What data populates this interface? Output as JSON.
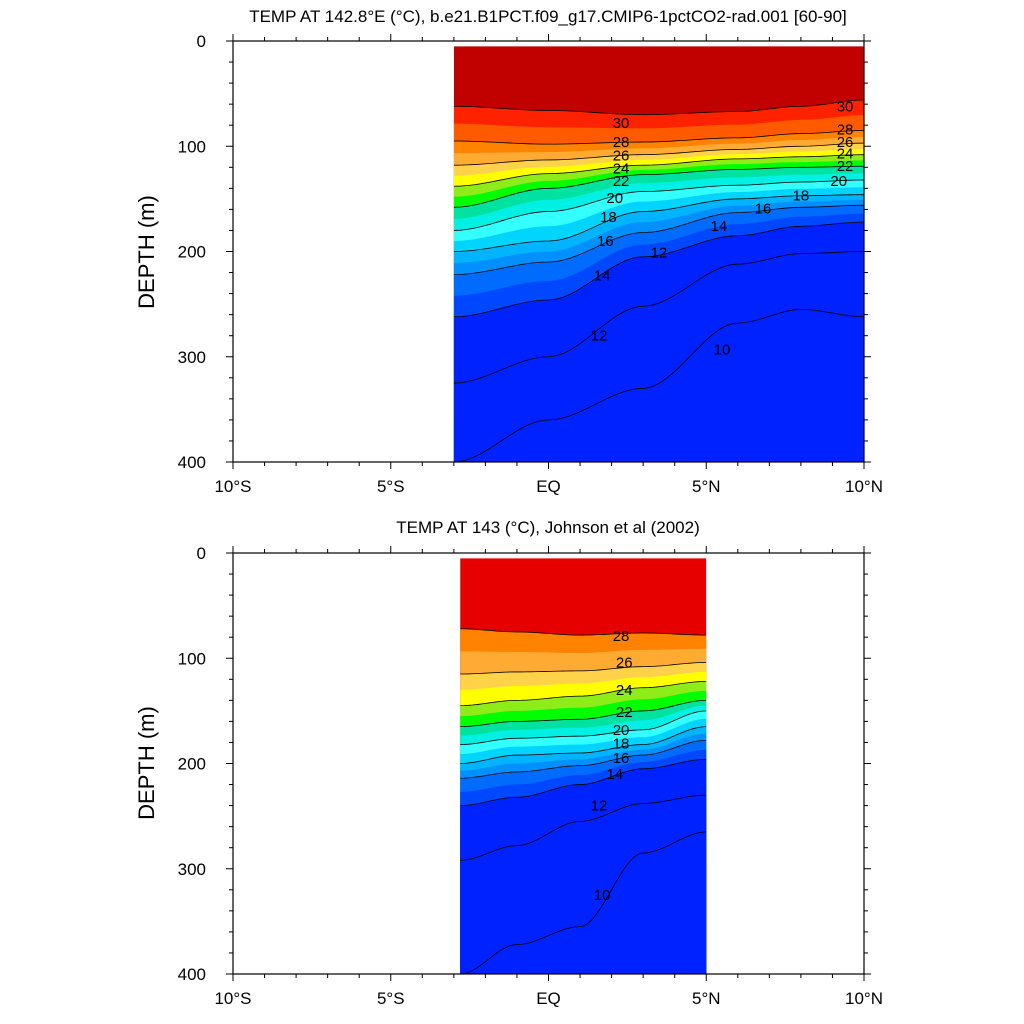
{
  "chart_data": [
    {
      "type": "heatmap",
      "title": "TEMP AT 142.8°E (°C), b.e21.B1PCT.f09_g17.CMIP6-1pctCO2-rad.001 [60-90]",
      "ylabel": "DEPTH (m)",
      "xlabel": "",
      "x_ticks": [
        -10,
        -5,
        0,
        5,
        10
      ],
      "x_tick_labels": [
        "10°S",
        "5°S",
        "EQ",
        "5°N",
        "10°N"
      ],
      "y_ticks": [
        0,
        100,
        200,
        300,
        400
      ],
      "y_tick_labels": [
        "0",
        "100",
        "200",
        "300",
        "400"
      ],
      "xlim": [
        -10,
        10
      ],
      "ylim": [
        400,
        0
      ],
      "y_reversed": true,
      "data_x_range": [
        -3,
        10
      ],
      "data_depth_range": [
        5,
        400
      ],
      "contour_levels": [
        30,
        28,
        26,
        24,
        22,
        20,
        18,
        16,
        14,
        12,
        10
      ],
      "contours": [
        {
          "level": 30,
          "x": [
            -3,
            0,
            3,
            6,
            8,
            10
          ],
          "depth": [
            62,
            66,
            70,
            67,
            62,
            56
          ]
        },
        {
          "level": 28,
          "x": [
            -3,
            0,
            3,
            6,
            8,
            10
          ],
          "depth": [
            95,
            98,
            96,
            92,
            88,
            85
          ]
        },
        {
          "level": 26,
          "x": [
            -3,
            0,
            3,
            6,
            8,
            10
          ],
          "depth": [
            118,
            113,
            108,
            103,
            100,
            97
          ]
        },
        {
          "level": 24,
          "x": [
            -3,
            0,
            3,
            6,
            8,
            10
          ],
          "depth": [
            138,
            126,
            118,
            112,
            110,
            108
          ]
        },
        {
          "level": 22,
          "x": [
            -3,
            0,
            3,
            6,
            8,
            10
          ],
          "depth": [
            158,
            140,
            127,
            122,
            120,
            119
          ]
        },
        {
          "level": 20,
          "x": [
            -3,
            0,
            3,
            6,
            8,
            10
          ],
          "depth": [
            180,
            162,
            143,
            137,
            134,
            132
          ]
        },
        {
          "level": 18,
          "x": [
            -3,
            0,
            3,
            6,
            8,
            10
          ],
          "depth": [
            200,
            190,
            162,
            150,
            147,
            146
          ]
        },
        {
          "level": 16,
          "x": [
            -3,
            0,
            3,
            6,
            8,
            10
          ],
          "depth": [
            222,
            210,
            182,
            163,
            158,
            156
          ]
        },
        {
          "level": 14,
          "x": [
            -3,
            0,
            3,
            6,
            8,
            10
          ],
          "depth": [
            262,
            246,
            205,
            185,
            176,
            172
          ]
        },
        {
          "level": 12,
          "x": [
            -3,
            0,
            3,
            6,
            8,
            10
          ],
          "depth": [
            325,
            300,
            252,
            212,
            202,
            200
          ]
        },
        {
          "level": 10,
          "x": [
            -3,
            0,
            3,
            6,
            8,
            10
          ],
          "depth": [
            400,
            360,
            330,
            268,
            255,
            262
          ]
        }
      ],
      "contour_labels": [
        {
          "text": "30",
          "x": 2.3,
          "depth": 78
        },
        {
          "text": "28",
          "x": 2.3,
          "depth": 96
        },
        {
          "text": "26",
          "x": 2.3,
          "depth": 109
        },
        {
          "text": "24",
          "x": 2.3,
          "depth": 121
        },
        {
          "text": "22",
          "x": 2.3,
          "depth": 133
        },
        {
          "text": "20",
          "x": 2.1,
          "depth": 149
        },
        {
          "text": "18",
          "x": 1.9,
          "depth": 167
        },
        {
          "text": "16",
          "x": 1.8,
          "depth": 190
        },
        {
          "text": "14",
          "x": 1.7,
          "depth": 223
        },
        {
          "text": "12",
          "x": 1.6,
          "depth": 280
        },
        {
          "text": "10",
          "x": 5.5,
          "depth": 293
        },
        {
          "text": "30",
          "x": 9.4,
          "depth": 62
        },
        {
          "text": "28",
          "x": 9.4,
          "depth": 84
        },
        {
          "text": "26",
          "x": 9.4,
          "depth": 96
        },
        {
          "text": "24",
          "x": 9.4,
          "depth": 107
        },
        {
          "text": "22",
          "x": 9.4,
          "depth": 119
        },
        {
          "text": "20",
          "x": 9.2,
          "depth": 133
        },
        {
          "text": "18",
          "x": 8.0,
          "depth": 147
        },
        {
          "text": "16",
          "x": 6.8,
          "depth": 159
        },
        {
          "text": "14",
          "x": 5.4,
          "depth": 176
        },
        {
          "text": "12",
          "x": 3.5,
          "depth": 201
        }
      ]
    },
    {
      "type": "heatmap",
      "title": "TEMP AT 143 (°C), Johnson et al (2002)",
      "ylabel": "DEPTH (m)",
      "xlabel": "",
      "x_ticks": [
        -10,
        -5,
        0,
        5,
        10
      ],
      "x_tick_labels": [
        "10°S",
        "5°S",
        "EQ",
        "5°N",
        "10°N"
      ],
      "y_ticks": [
        0,
        100,
        200,
        300,
        400
      ],
      "y_tick_labels": [
        "0",
        "100",
        "200",
        "300",
        "400"
      ],
      "xlim": [
        -10,
        10
      ],
      "ylim": [
        400,
        0
      ],
      "y_reversed": true,
      "data_x_range": [
        -2.8,
        5
      ],
      "data_depth_range": [
        5,
        400
      ],
      "contour_levels": [
        28,
        26,
        24,
        22,
        20,
        18,
        16,
        14,
        12,
        10
      ],
      "contours": [
        {
          "level": 28,
          "x": [
            -2.8,
            -1,
            1,
            3,
            5
          ],
          "depth": [
            72,
            75,
            78,
            76,
            78
          ]
        },
        {
          "level": 26,
          "x": [
            -2.8,
            -1,
            1,
            3,
            5
          ],
          "depth": [
            115,
            113,
            112,
            108,
            104
          ]
        },
        {
          "level": 24,
          "x": [
            -2.8,
            -1,
            1,
            3,
            5
          ],
          "depth": [
            145,
            140,
            136,
            128,
            122
          ]
        },
        {
          "level": 22,
          "x": [
            -2.8,
            -1,
            1,
            3,
            5
          ],
          "depth": [
            165,
            160,
            158,
            150,
            140
          ]
        },
        {
          "level": 20,
          "x": [
            -2.8,
            -1,
            1,
            3,
            5
          ],
          "depth": [
            182,
            176,
            174,
            168,
            150
          ]
        },
        {
          "level": 18,
          "x": [
            -2.8,
            -1,
            1,
            3,
            5
          ],
          "depth": [
            200,
            192,
            190,
            182,
            165
          ]
        },
        {
          "level": 16,
          "x": [
            -2.8,
            -1,
            1,
            3,
            5
          ],
          "depth": [
            214,
            208,
            202,
            192,
            178
          ]
        },
        {
          "level": 14,
          "x": [
            -2.8,
            -1,
            1,
            3,
            5
          ],
          "depth": [
            240,
            232,
            220,
            205,
            196
          ]
        },
        {
          "level": 12,
          "x": [
            -2.8,
            -1,
            1,
            3,
            5
          ],
          "depth": [
            292,
            278,
            255,
            238,
            230
          ]
        },
        {
          "level": 10,
          "x": [
            -2.8,
            -1,
            1,
            3,
            5
          ],
          "depth": [
            400,
            372,
            355,
            285,
            265
          ]
        }
      ],
      "contour_labels": [
        {
          "text": "28",
          "x": 2.3,
          "depth": 79
        },
        {
          "text": "26",
          "x": 2.4,
          "depth": 104
        },
        {
          "text": "24",
          "x": 2.4,
          "depth": 130
        },
        {
          "text": "22",
          "x": 2.4,
          "depth": 151
        },
        {
          "text": "20",
          "x": 2.3,
          "depth": 168
        },
        {
          "text": "18",
          "x": 2.3,
          "depth": 181
        },
        {
          "text": "16",
          "x": 2.3,
          "depth": 195
        },
        {
          "text": "14",
          "x": 2.1,
          "depth": 210
        },
        {
          "text": "12",
          "x": 1.6,
          "depth": 240
        },
        {
          "text": "10",
          "x": 1.7,
          "depth": 325
        }
      ]
    }
  ]
}
